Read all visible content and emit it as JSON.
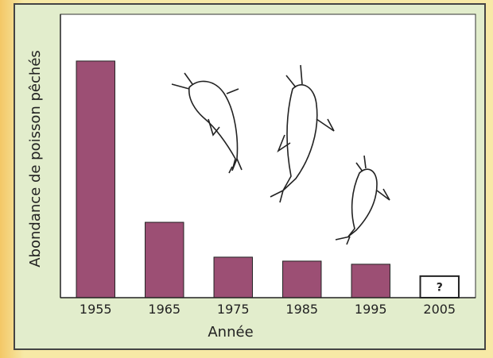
{
  "chart_data": {
    "type": "bar",
    "x_label": "Année",
    "y_label": "Abondance de poisson pêchés",
    "categories": [
      "1955",
      "1965",
      "1975",
      "1985",
      "1995",
      "2005"
    ],
    "values": [
      83.5,
      26.6,
      14.3,
      12.9,
      11.8,
      7.6
    ],
    "colors": [
      "#9c4f74",
      "#9c4f74",
      "#9c4f74",
      "#9c4f74",
      "#9c4f74",
      "#ffffff"
    ],
    "annotation": "?",
    "ylim": [
      0,
      100
    ]
  }
}
